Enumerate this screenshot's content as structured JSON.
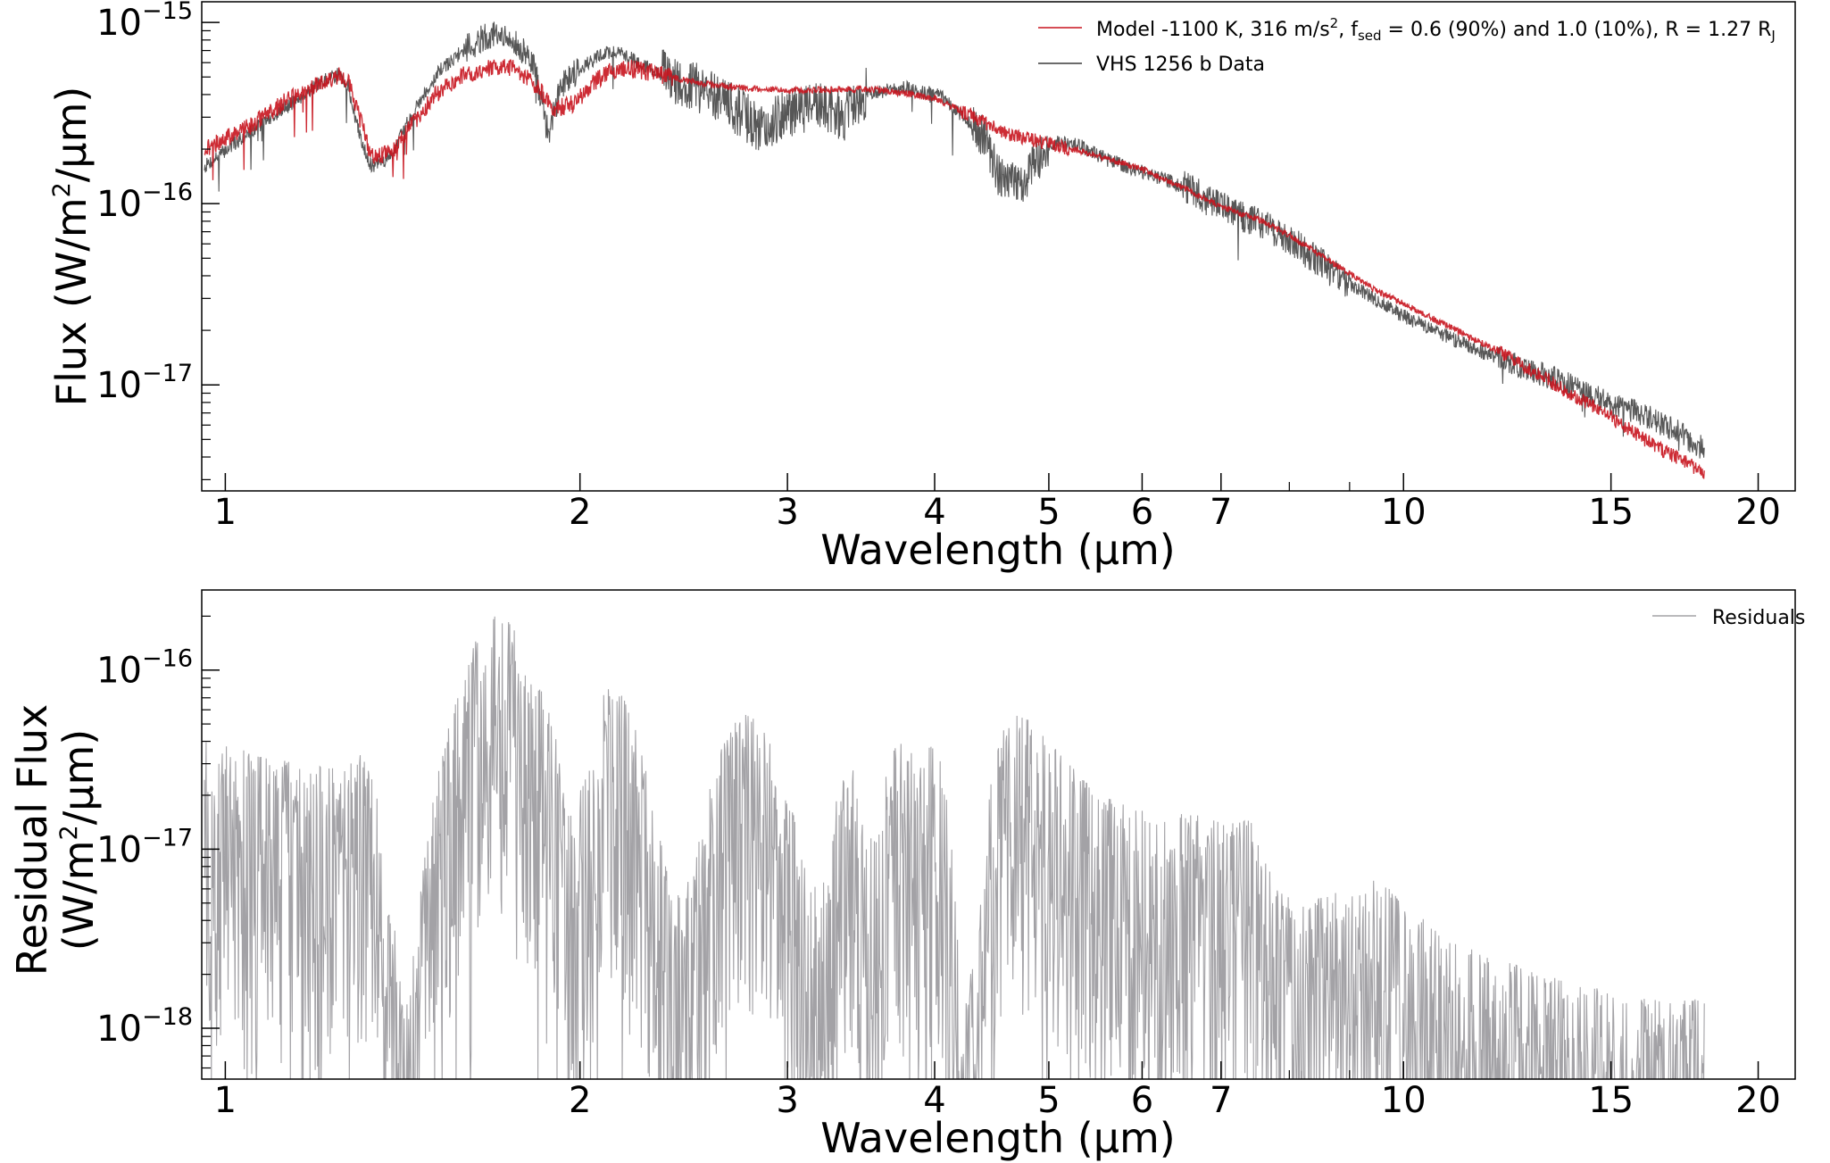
{
  "chart_data": [
    {
      "type": "line",
      "scale": {
        "x": "log",
        "y": "log"
      },
      "xlim": [
        0.955,
        21.5
      ],
      "ylim": [
        2.6e-18,
        1.3e-15
      ],
      "xticks": [
        {
          "value": 1,
          "label": "1"
        },
        {
          "value": 2,
          "label": "2"
        },
        {
          "value": 3,
          "label": "3"
        },
        {
          "value": 4,
          "label": "4"
        },
        {
          "value": 5,
          "label": "5"
        },
        {
          "value": 6,
          "label": "6"
        },
        {
          "value": 7,
          "label": "7"
        },
        {
          "value": 10,
          "label": "10"
        },
        {
          "value": 15,
          "label": "15"
        },
        {
          "value": 20,
          "label": "20"
        }
      ],
      "yticks": [
        {
          "value": 1e-15,
          "base": "10",
          "exponent": "−15"
        },
        {
          "value": 1e-16,
          "base": "10",
          "exponent": "−16"
        },
        {
          "value": 1e-17,
          "base": "10",
          "exponent": "−17"
        }
      ],
      "xlabel": "Wavelength (μm)",
      "ylabel": {
        "pre": "Flux (W/m",
        "sup": "2",
        "post": "/μm)"
      },
      "legend_position": "top-right",
      "series": [
        {
          "name": "model",
          "label_parts": [
            "Model -1100 K, 316 m/s",
            "2",
            ", f",
            "sed",
            " = 0.6 (90%) and 1.0 (10%), R = 1.27 R",
            "J"
          ],
          "color": "#c8141e",
          "x": [
            0.96,
            1.05,
            1.12,
            1.2,
            1.25,
            1.27,
            1.3,
            1.33,
            1.38,
            1.45,
            1.52,
            1.6,
            1.68,
            1.75,
            1.8,
            1.85,
            1.9,
            1.98,
            2.05,
            2.12,
            2.2,
            2.3,
            2.45,
            2.6,
            2.8,
            3.0,
            3.2,
            3.5,
            3.8,
            4.0,
            4.2,
            4.4,
            4.6,
            4.8,
            5.0,
            5.4,
            6.0,
            6.5,
            7.0,
            7.5,
            8.0,
            8.5,
            9.0,
            9.5,
            10.0,
            11.0,
            12.0,
            13.0,
            14.0,
            15.0,
            16.0,
            17.0,
            18.0
          ],
          "y": [
            2e-16,
            2.7e-16,
            3.6e-16,
            4.6e-16,
            5.1e-16,
            4.8e-16,
            3e-16,
            1.8e-16,
            1.9e-16,
            2.9e-16,
            4.2e-16,
            5.2e-16,
            5.6e-16,
            5.6e-16,
            5e-16,
            4.2e-16,
            3.3e-16,
            3.6e-16,
            4.6e-16,
            5.4e-16,
            5.6e-16,
            5.3e-16,
            4.8e-16,
            4.5e-16,
            4.3e-16,
            4.2e-16,
            4.25e-16,
            4.3e-16,
            4.05e-16,
            3.8e-16,
            3.3e-16,
            2.8e-16,
            2.45e-16,
            2.3e-16,
            2.15e-16,
            1.9e-16,
            1.55e-16,
            1.22e-16,
            9.6e-17,
            8.3e-17,
            6.7e-17,
            5.2e-17,
            4.1e-17,
            3.3e-17,
            2.8e-17,
            2.05e-17,
            1.55e-17,
            1.15e-17,
            8.6e-18,
            6.6e-18,
            5e-18,
            4e-18,
            3.3e-18
          ]
        },
        {
          "name": "data",
          "label": "VHS 1256 b Data",
          "color": "#3a3a3a",
          "x": [
            0.96,
            1.05,
            1.12,
            1.2,
            1.25,
            1.27,
            1.3,
            1.33,
            1.38,
            1.45,
            1.52,
            1.6,
            1.68,
            1.73,
            1.78,
            1.83,
            1.88,
            1.93,
            2.0,
            2.05,
            2.1,
            2.15,
            2.2,
            2.3,
            2.45,
            2.6,
            2.75,
            2.85,
            3.0,
            3.2,
            3.35,
            3.5,
            3.8,
            4.05,
            4.2,
            4.4,
            4.55,
            4.75,
            4.9,
            5.1,
            5.3,
            5.6,
            6.0,
            6.5,
            7.0,
            7.5,
            8.0,
            8.5,
            9.0,
            9.5,
            10.0,
            11.0,
            12.0,
            13.0,
            14.0,
            15.0,
            16.0,
            17.0,
            18.0
          ],
          "y": [
            1.6e-16,
            2.5e-16,
            3.3e-16,
            4.6e-16,
            5.2e-16,
            4.5e-16,
            2.4e-16,
            1.6e-16,
            1.8e-16,
            3.4e-16,
            5.4e-16,
            7.2e-16,
            8.6e-16,
            8e-16,
            7.3e-16,
            5.6e-16,
            2.4e-16,
            4.6e-16,
            5.6e-16,
            6.2e-16,
            6.8e-16,
            6.9e-16,
            6.4e-16,
            5.5e-16,
            4.6e-16,
            4e-16,
            3.1e-16,
            2.6e-16,
            3.2e-16,
            3.5e-16,
            3e-16,
            4.1e-16,
            4.35e-16,
            3.9e-16,
            3.1e-16,
            2.4e-16,
            1.35e-16,
            1.3e-16,
            1.8e-16,
            2.2e-16,
            2.1e-16,
            1.75e-16,
            1.5e-16,
            1.25e-16,
            9.5e-17,
            8e-17,
            6.3e-17,
            4.7e-17,
            3.6e-17,
            2.9e-17,
            2.4e-17,
            1.8e-17,
            1.4e-17,
            1.18e-17,
            9.6e-18,
            7.8e-18,
            6.8e-18,
            5.6e-18,
            4.4e-18
          ]
        }
      ]
    },
    {
      "type": "line",
      "scale": {
        "x": "log",
        "y": "log"
      },
      "xlim": [
        0.955,
        21.5
      ],
      "ylim": [
        5.2e-19,
        2.8e-16
      ],
      "xticks": [
        {
          "value": 1,
          "label": "1"
        },
        {
          "value": 2,
          "label": "2"
        },
        {
          "value": 3,
          "label": "3"
        },
        {
          "value": 4,
          "label": "4"
        },
        {
          "value": 5,
          "label": "5"
        },
        {
          "value": 6,
          "label": "6"
        },
        {
          "value": 7,
          "label": "7"
        },
        {
          "value": 10,
          "label": "10"
        },
        {
          "value": 15,
          "label": "15"
        },
        {
          "value": 20,
          "label": "20"
        }
      ],
      "yticks": [
        {
          "value": 1e-16,
          "base": "10",
          "exponent": "−16"
        },
        {
          "value": 1e-17,
          "base": "10",
          "exponent": "−17"
        },
        {
          "value": 1e-18,
          "base": "10",
          "exponent": "−18"
        }
      ],
      "xlabel": "Wavelength (μm)",
      "ylabel_line1": "Residual Flux",
      "ylabel_line2": {
        "pre": "(W/m",
        "sup": "2",
        "post": "/μm)"
      },
      "legend_position": "top-right",
      "series": [
        {
          "name": "residuals",
          "label": "Residuals",
          "color": "#a3a2a6",
          "x": [
            0.96,
            1.05,
            1.15,
            1.25,
            1.3,
            1.35,
            1.42,
            1.5,
            1.55,
            1.6,
            1.65,
            1.7,
            1.75,
            1.8,
            1.85,
            1.9,
            1.95,
            2.05,
            2.1,
            2.15,
            2.25,
            2.4,
            2.5,
            2.6,
            2.7,
            2.8,
            2.9,
            3.0,
            3.1,
            3.2,
            3.3,
            3.4,
            3.5,
            3.7,
            3.9,
            4.05,
            4.15,
            4.25,
            4.35,
            4.45,
            4.55,
            4.7,
            4.85,
            5.0,
            5.2,
            5.5,
            5.8,
            6.2,
            6.6,
            7.0,
            7.4,
            7.8,
            8.2,
            8.6,
            9.0,
            9.5,
            10.0,
            11.0,
            12.0,
            13.0,
            14.0,
            15.0,
            16.0,
            17.0,
            18.0
          ],
          "y": [
            4e-17,
            3.5e-17,
            3e-17,
            2.8e-17,
            3.6e-17,
            2e-17,
            1.2e-18,
            2e-17,
            5e-17,
            1e-16,
            1.8e-16,
            2.2e-16,
            1.8e-16,
            1.2e-16,
            8e-17,
            5e-17,
            1.5e-17,
            3e-17,
            8e-17,
            9e-17,
            4e-17,
            5e-18,
            8e-18,
            3e-17,
            5e-17,
            6e-17,
            4e-17,
            2e-17,
            1e-17,
            5e-18,
            2e-17,
            4e-17,
            1e-17,
            4e-17,
            3.5e-17,
            4e-17,
            8e-18,
            1.5e-18,
            3e-18,
            2e-17,
            5e-17,
            6e-17,
            5e-17,
            4e-17,
            3e-17,
            2e-17,
            1.8e-17,
            1.5e-17,
            1.6e-17,
            1.4e-17,
            1.5e-17,
            6e-18,
            5e-18,
            5.5e-18,
            6e-18,
            7e-18,
            5e-18,
            3e-18,
            2.5e-18,
            2e-18,
            1.8e-18,
            1.6e-18,
            1.5e-18,
            1.4e-18,
            1.5e-18
          ]
        }
      ]
    }
  ]
}
